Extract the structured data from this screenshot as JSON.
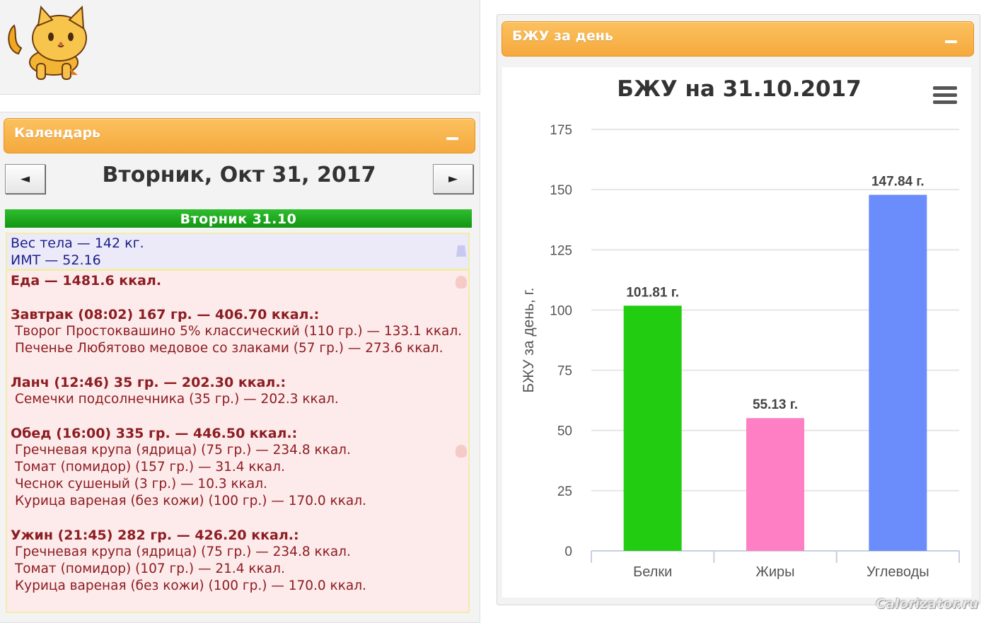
{
  "calendar": {
    "title": "Календарь",
    "prev_label": "◄",
    "next_label": "►",
    "date_title": "Вторник, Окт 31, 2017",
    "day_header": "Вторник 31.10",
    "weight_line": "Вес тела — 142 кг.",
    "bmi_line": "ИМТ — 52.16",
    "food_total": "Еда — 1481.6 ккал.",
    "meals": [
      {
        "header": "Завтрак (08:02) 167 гр. — 406.70 ккал.:",
        "items": [
          "Творог Простоквашино 5% классический (110 гр.) — 133.1 ккал.",
          "Печенье Любятово медовое со злаками (57 гр.) — 273.6 ккал."
        ]
      },
      {
        "header": "Ланч (12:46) 35 гр. — 202.30 ккал.:",
        "items": [
          "Семечки подсолнечника (35 гр.) — 202.3 ккал."
        ]
      },
      {
        "header": "Обед (16:00) 335 гр. — 446.50 ккал.:",
        "items": [
          "Гречневая крупа (ядрица) (75 гр.) — 234.8 ккал.",
          "Томат (помидор) (157 гр.) — 31.4 ккал.",
          "Чеснок сушеный (3 гр.) — 10.3 ккал.",
          "Курица вареная (без кожи) (100 гр.) — 170.0 ккал."
        ]
      },
      {
        "header": "Ужин (21:45) 282 гр. — 426.20 ккал.:",
        "items": [
          "Гречневая крупа (ядрица) (75 гр.) — 234.8 ккал.",
          "Томат (помидор) (107 гр.) — 21.4 ккал.",
          "Курица вареная (без кожи) (100 гр.) — 170.0 ккал."
        ]
      }
    ]
  },
  "chart_panel": {
    "title": "БЖУ за день"
  },
  "watermark": "Calorizator.ru",
  "icons": {
    "logo": "cat-logo-icon",
    "menu": "hamburger-menu-icon",
    "collapse": "minus-icon"
  },
  "colors": {
    "accent": "#f5a93d",
    "day_header": "#1aa51a",
    "protein": "#22cc11",
    "fat": "#ff7fc4",
    "carbs": "#6b8cfb"
  },
  "chart_data": {
    "type": "bar",
    "title": "БЖУ на 31.10.2017",
    "ylabel": "БЖУ за день, г.",
    "xlabel": "",
    "categories": [
      "Белки",
      "Жиры",
      "Углеводы"
    ],
    "values": [
      101.81,
      55.13,
      147.84
    ],
    "data_labels": [
      "101.81 г.",
      "55.13 г.",
      "147.84 г."
    ],
    "colors": [
      "#22cc11",
      "#ff7fc4",
      "#6b8cfb"
    ],
    "yticks": [
      "0",
      "25",
      "50",
      "75",
      "100",
      "125",
      "150",
      "175"
    ],
    "ylim": [
      0,
      175
    ],
    "grid": true
  }
}
